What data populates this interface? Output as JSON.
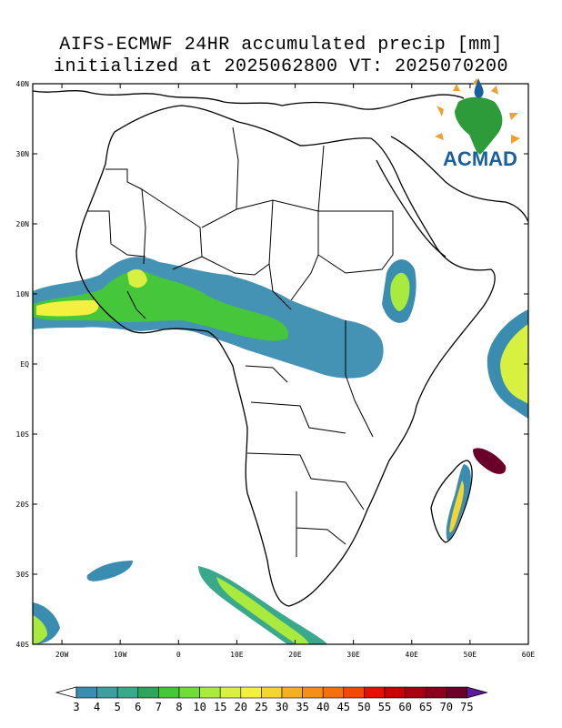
{
  "title": {
    "line1": "AIFS-ECMWF 24HR accumulated precip [mm]",
    "line2": "initialized at 2025062800 VT: 2025070200"
  },
  "logo": {
    "text": "ACMAD",
    "colors": {
      "blue": "#1a5f9e",
      "green": "#2e9b3a",
      "orange": "#f0a030"
    }
  },
  "map": {
    "lon_range": [
      -25,
      60
    ],
    "lat_range": [
      -40,
      40
    ],
    "lon_ticks": [
      {
        "value": -20,
        "label": "20W"
      },
      {
        "value": -10,
        "label": "10W"
      },
      {
        "value": 0,
        "label": "0"
      },
      {
        "value": 10,
        "label": "10E"
      },
      {
        "value": 20,
        "label": "20E"
      },
      {
        "value": 30,
        "label": "30E"
      },
      {
        "value": 40,
        "label": "40E"
      },
      {
        "value": 50,
        "label": "50E"
      },
      {
        "value": 60,
        "label": "60E"
      }
    ],
    "lat_ticks": [
      {
        "value": 40,
        "label": "40N"
      },
      {
        "value": 30,
        "label": "30N"
      },
      {
        "value": 20,
        "label": "20N"
      },
      {
        "value": 10,
        "label": "10N"
      },
      {
        "value": 0,
        "label": "EQ"
      },
      {
        "value": -10,
        "label": "10S"
      },
      {
        "value": -20,
        "label": "20S"
      },
      {
        "value": -30,
        "label": "30S"
      },
      {
        "value": -40,
        "label": "40S"
      }
    ]
  },
  "colorbar": {
    "levels": [
      "3",
      "4",
      "5",
      "6",
      "7",
      "8",
      "10",
      "15",
      "20",
      "25",
      "30",
      "35",
      "40",
      "45",
      "50",
      "55",
      "60",
      "65",
      "70",
      "75"
    ],
    "colors": [
      "#3a8cb0",
      "#3f9ea0",
      "#3aa88a",
      "#2fa45a",
      "#46c63a",
      "#6fdc3a",
      "#a8ea3e",
      "#d8f040",
      "#f4f040",
      "#f4d430",
      "#f4b020",
      "#f49018",
      "#f47010",
      "#f44808",
      "#e41000",
      "#c80000",
      "#a80010",
      "#88001c",
      "#6a0028"
    ],
    "low_color": "#ffffff",
    "high_color": "#5a189a"
  }
}
